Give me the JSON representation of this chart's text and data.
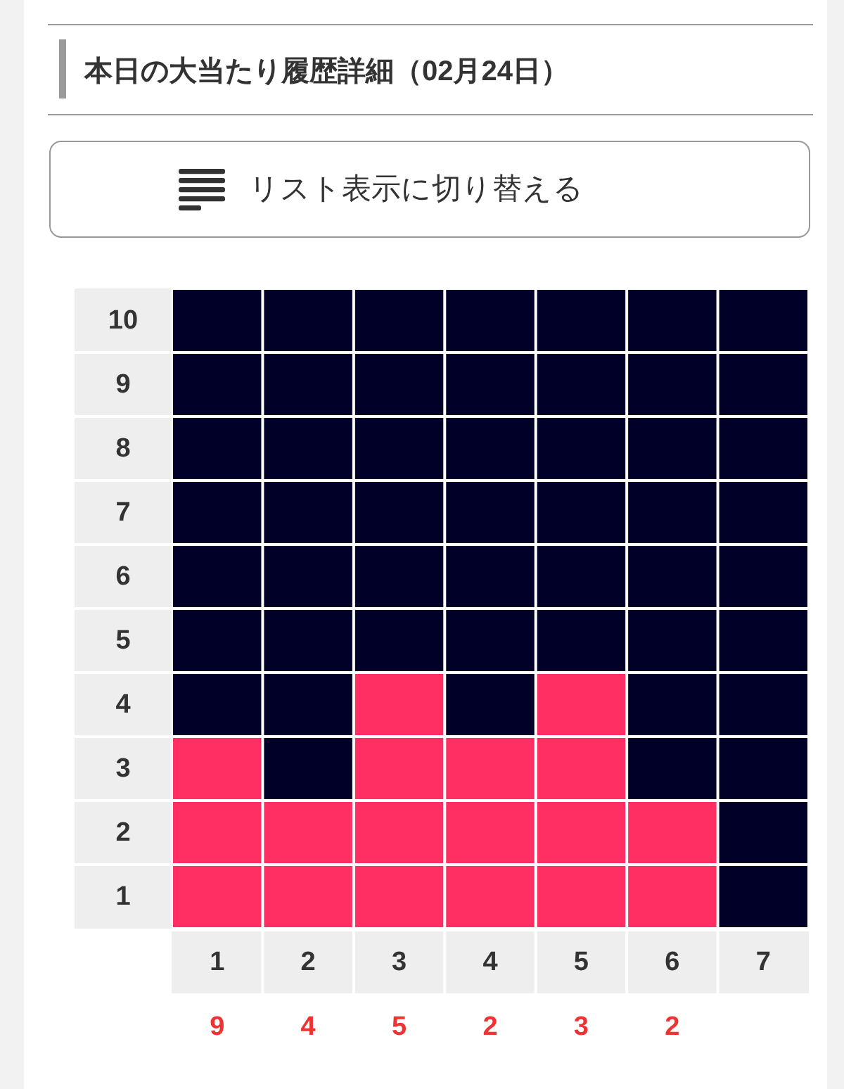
{
  "chart_data": {
    "type": "bar",
    "title": "本日の大当たり履歴詳細（02月24日）",
    "categories": [
      "1",
      "2",
      "3",
      "4",
      "5",
      "6",
      "7"
    ],
    "values": [
      3,
      2,
      4,
      3,
      4,
      2,
      null
    ],
    "base": [
      0.5,
      0.5,
      0.5,
      0.5,
      0.5,
      0.5,
      null
    ],
    "color": "#ff2e63",
    "ylim": [
      0.5,
      10.5
    ],
    "yticks": [
      1,
      2,
      3,
      4,
      5,
      6,
      7,
      8,
      9,
      10
    ],
    "annotations": [
      "リスト表示に切り替える",
      "9",
      "4",
      "5",
      "2",
      "3",
      "2"
    ]
  }
}
